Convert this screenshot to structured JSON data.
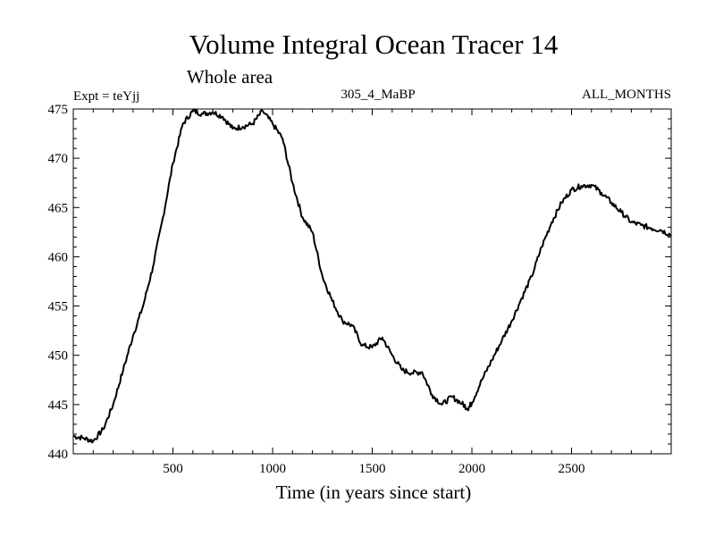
{
  "chart_data": {
    "type": "line",
    "title": "Volume Integral Ocean Tracer 14",
    "subtitle": "Whole area",
    "annotations": {
      "experiment": "Expt = teYjj",
      "run": "305_4_MaBP",
      "months": "ALL_MONTHS"
    },
    "xlabel": "Time (in years since start)",
    "ylabel": "",
    "xlim": [
      0,
      3000
    ],
    "ylim": [
      440,
      475
    ],
    "xticks": [
      500,
      1000,
      1500,
      2000,
      2500
    ],
    "yticks": [
      440,
      445,
      450,
      455,
      460,
      465,
      470,
      475
    ],
    "grid": false,
    "series": [
      {
        "name": "Ocean Tracer 14",
        "color": "#000000",
        "x": [
          0,
          50,
          100,
          150,
          200,
          250,
          300,
          350,
          400,
          450,
          500,
          550,
          600,
          650,
          700,
          750,
          800,
          850,
          900,
          950,
          1000,
          1050,
          1100,
          1150,
          1200,
          1250,
          1300,
          1350,
          1400,
          1450,
          1500,
          1550,
          1600,
          1650,
          1700,
          1750,
          1800,
          1850,
          1900,
          1950,
          1980,
          2000,
          2050,
          2100,
          2150,
          2200,
          2250,
          2300,
          2350,
          2400,
          2450,
          2500,
          2550,
          2600,
          2650,
          2700,
          2750,
          2800,
          2850,
          2900,
          2950,
          3000
        ],
        "values": [
          441.8,
          441.6,
          441.3,
          442.5,
          445.0,
          448.5,
          452.0,
          455.0,
          459.0,
          464.0,
          469.5,
          473.5,
          474.8,
          474.5,
          474.7,
          474.2,
          473.0,
          473.2,
          473.5,
          474.8,
          473.5,
          472.0,
          467.5,
          464.0,
          462.5,
          458.0,
          455.5,
          453.5,
          453.0,
          451.0,
          450.8,
          451.8,
          450.0,
          448.5,
          448.2,
          448.3,
          446.0,
          445.0,
          445.8,
          445.1,
          444.6,
          445.2,
          447.5,
          449.5,
          451.5,
          453.5,
          455.8,
          458.0,
          461.0,
          463.5,
          465.5,
          466.8,
          467.2,
          467.3,
          466.5,
          465.5,
          464.5,
          463.5,
          463.2,
          462.9,
          462.7,
          462.2
        ]
      }
    ]
  }
}
